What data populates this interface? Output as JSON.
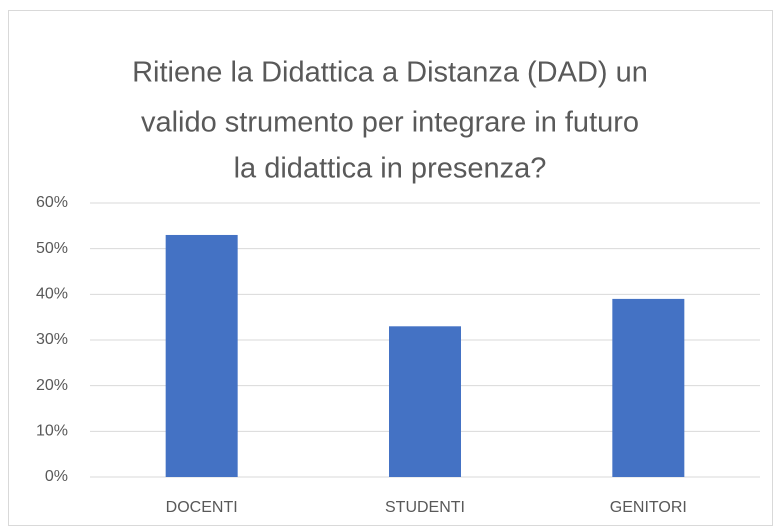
{
  "chart_data": {
    "type": "bar",
    "title": [
      "Ritiene la Didattica a Distanza (DAD) un",
      "valido strumento per integrare in futuro",
      "la didattica in presenza?"
    ],
    "categories": [
      "DOCENTI",
      "STUDENTI",
      "GENITORI"
    ],
    "values": [
      53,
      33,
      39
    ],
    "color": "#4472c4",
    "ylim": [
      0,
      60
    ],
    "yticks": [
      {
        "value": 0,
        "label": "0%"
      },
      {
        "value": 10,
        "label": "10%"
      },
      {
        "value": 20,
        "label": "20%"
      },
      {
        "value": 30,
        "label": "30%"
      },
      {
        "value": 40,
        "label": "40%"
      },
      {
        "value": 50,
        "label": "50%"
      },
      {
        "value": 60,
        "label": "60%"
      }
    ],
    "grid": true
  }
}
